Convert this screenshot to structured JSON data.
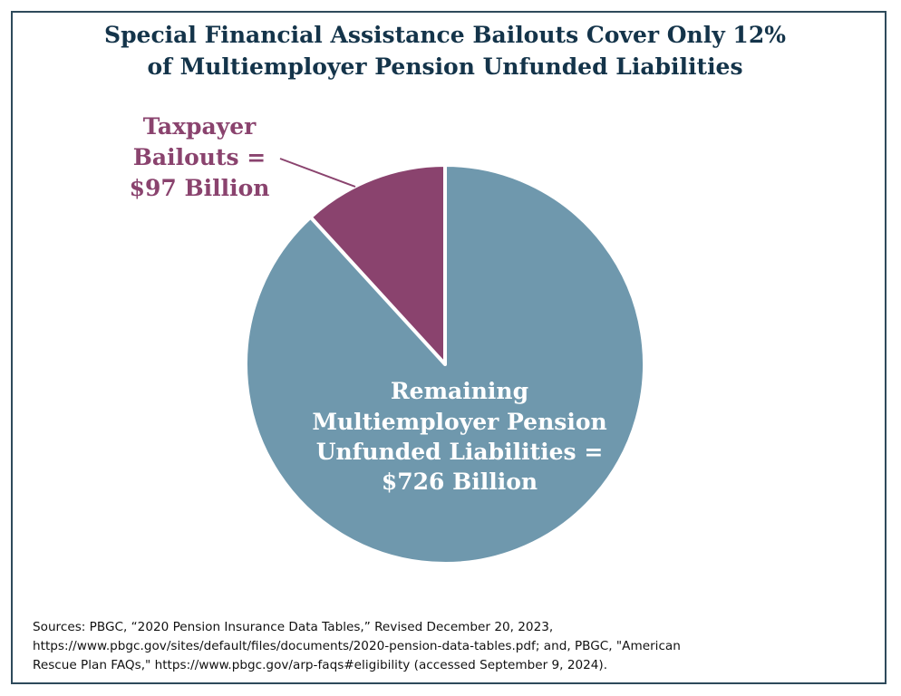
{
  "chart_data": {
    "type": "pie",
    "title_lines": [
      "Special Financial Assistance Bailouts Cover Only 12%",
      "of Multiemployer Pension Unfunded Liabilities"
    ],
    "slices": [
      {
        "name": "Taxpayer Bailouts",
        "value": 97,
        "color": "#8a436e",
        "label_lines": [
          "Taxpayer",
          "Bailouts =",
          "$97 Billion"
        ]
      },
      {
        "name": "Remaining Multiemployer Pension Unfunded Liabilities",
        "value": 726,
        "color": "#6f98ad",
        "label_lines": [
          "Remaining",
          "Multiemployer Pension",
          "Unfunded Liabilities =",
          "$726 Billion"
        ]
      }
    ],
    "units": "Billion USD",
    "legend": "none"
  },
  "sources": {
    "line1": "Sources: PBGC, “2020 Pension Insurance Data Tables,” Revised December 20, 2023,",
    "line2": "https://www.pbgc.gov/sites/default/files/documents/2020-pension-data-tables.pdf; and, PBGC, \"American",
    "line3": "Rescue Plan FAQs,\" https://www.pbgc.gov/arp-faqs#eligibility (accessed September 9, 2024)."
  }
}
